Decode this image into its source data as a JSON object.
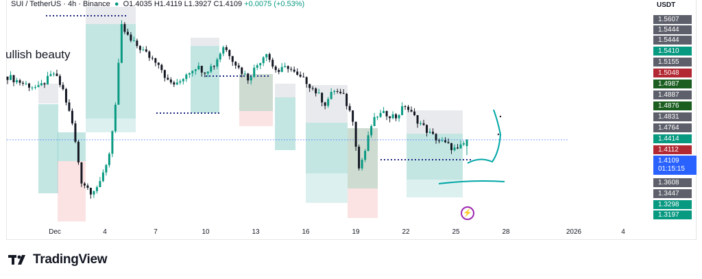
{
  "header": {
    "symbol": "SUI / TetherUS",
    "separator": "·",
    "interval": "4h",
    "exchange": "Binance",
    "open": "O1.4035",
    "high": "H1.4119",
    "low": "L1.3927",
    "close": "C1.4109",
    "change": "+0.0075 (+0.53%)"
  },
  "currency": "USDT",
  "annotation": "ullish beauty",
  "current_price": {
    "value": "1.4109",
    "countdown": "01:15:15",
    "color": "#2962ff"
  },
  "price_labels": [
    {
      "text": "1.5607",
      "color": "#5d606b"
    },
    {
      "text": "1.5444",
      "color": "#5d606b"
    },
    {
      "text": "1.5444",
      "color": "#5d606b"
    },
    {
      "text": "1.5410",
      "color": "#089981"
    },
    {
      "text": "1.5155",
      "color": "#5d606b"
    },
    {
      "text": "1.5048",
      "color": "#b22833"
    },
    {
      "text": "1.4987",
      "color": "#1b5e20"
    },
    {
      "text": "1.4887",
      "color": "#5d606b"
    },
    {
      "text": "1.4876",
      "color": "#1b5e20"
    },
    {
      "text": "1.4831",
      "color": "#5d606b"
    },
    {
      "text": "1.4764",
      "color": "#5d606b"
    },
    {
      "text": "1.4414",
      "color": "#089981"
    },
    {
      "text": "1.4112",
      "color": "#b22833"
    },
    {
      "text": "1.3608",
      "color": "#5d606b"
    },
    {
      "text": "1.3447",
      "color": "#5d606b"
    },
    {
      "text": "1.3298",
      "color": "#089981"
    },
    {
      "text": "1.3197",
      "color": "#089981"
    }
  ],
  "x_labels": [
    "Dec",
    "4",
    "7",
    "10",
    "13",
    "16",
    "19",
    "22",
    "25",
    "28",
    "2026",
    "4"
  ],
  "brand": "TradingView",
  "icons": {
    "logo": "tradingview-logo-icon",
    "flash": "lightning-icon"
  },
  "chart_data": {
    "type": "candlestick",
    "interval": "4h",
    "x_axis_labels": [
      "Dec",
      "4",
      "7",
      "10",
      "13",
      "16",
      "19",
      "22",
      "25",
      "28",
      "2026",
      "4"
    ],
    "last_candle": {
      "open": 1.4035,
      "high": 1.4119,
      "low": 1.3927,
      "close": 1.4109
    },
    "price_axis_labels": [
      1.5607,
      1.5444,
      1.5444,
      1.541,
      1.5155,
      1.5048,
      1.4987,
      1.4887,
      1.4876,
      1.4831,
      1.4764,
      1.4414,
      1.4112,
      1.3608,
      1.3447,
      1.3298,
      1.3197
    ],
    "candle_count": 150,
    "colors": {
      "up": "#089981",
      "down": "#131722",
      "target_zone": "#26a69a",
      "stop_zone": "#ef9a9a",
      "neutral_zone": "#b0b3bd"
    }
  }
}
